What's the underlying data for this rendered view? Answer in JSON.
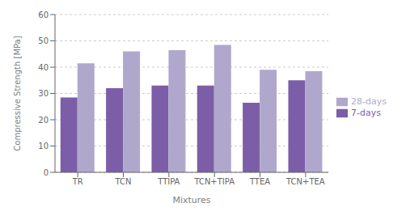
{
  "chart_data": {
    "type": "bar",
    "categories": [
      "TR",
      "TCN",
      "TTIPA",
      "TCN+TIPA",
      "TTEA",
      "TCN+TEA"
    ],
    "series": [
      {
        "name": "7-days",
        "color": "#7B5EA7",
        "values": [
          28.5,
          32.0,
          33.0,
          33.0,
          26.5,
          35.0
        ]
      },
      {
        "name": "28-days",
        "color": "#B0A8CC",
        "values": [
          41.5,
          46.0,
          46.5,
          48.5,
          39.0,
          38.5
        ]
      }
    ],
    "xlabel": "Mixtures",
    "ylabel": "Compressive Strength [MPa]",
    "ylim": [
      0,
      60
    ],
    "yticks": [
      0,
      10,
      20,
      30,
      40,
      50,
      60
    ],
    "grid": true,
    "legend": "right"
  }
}
